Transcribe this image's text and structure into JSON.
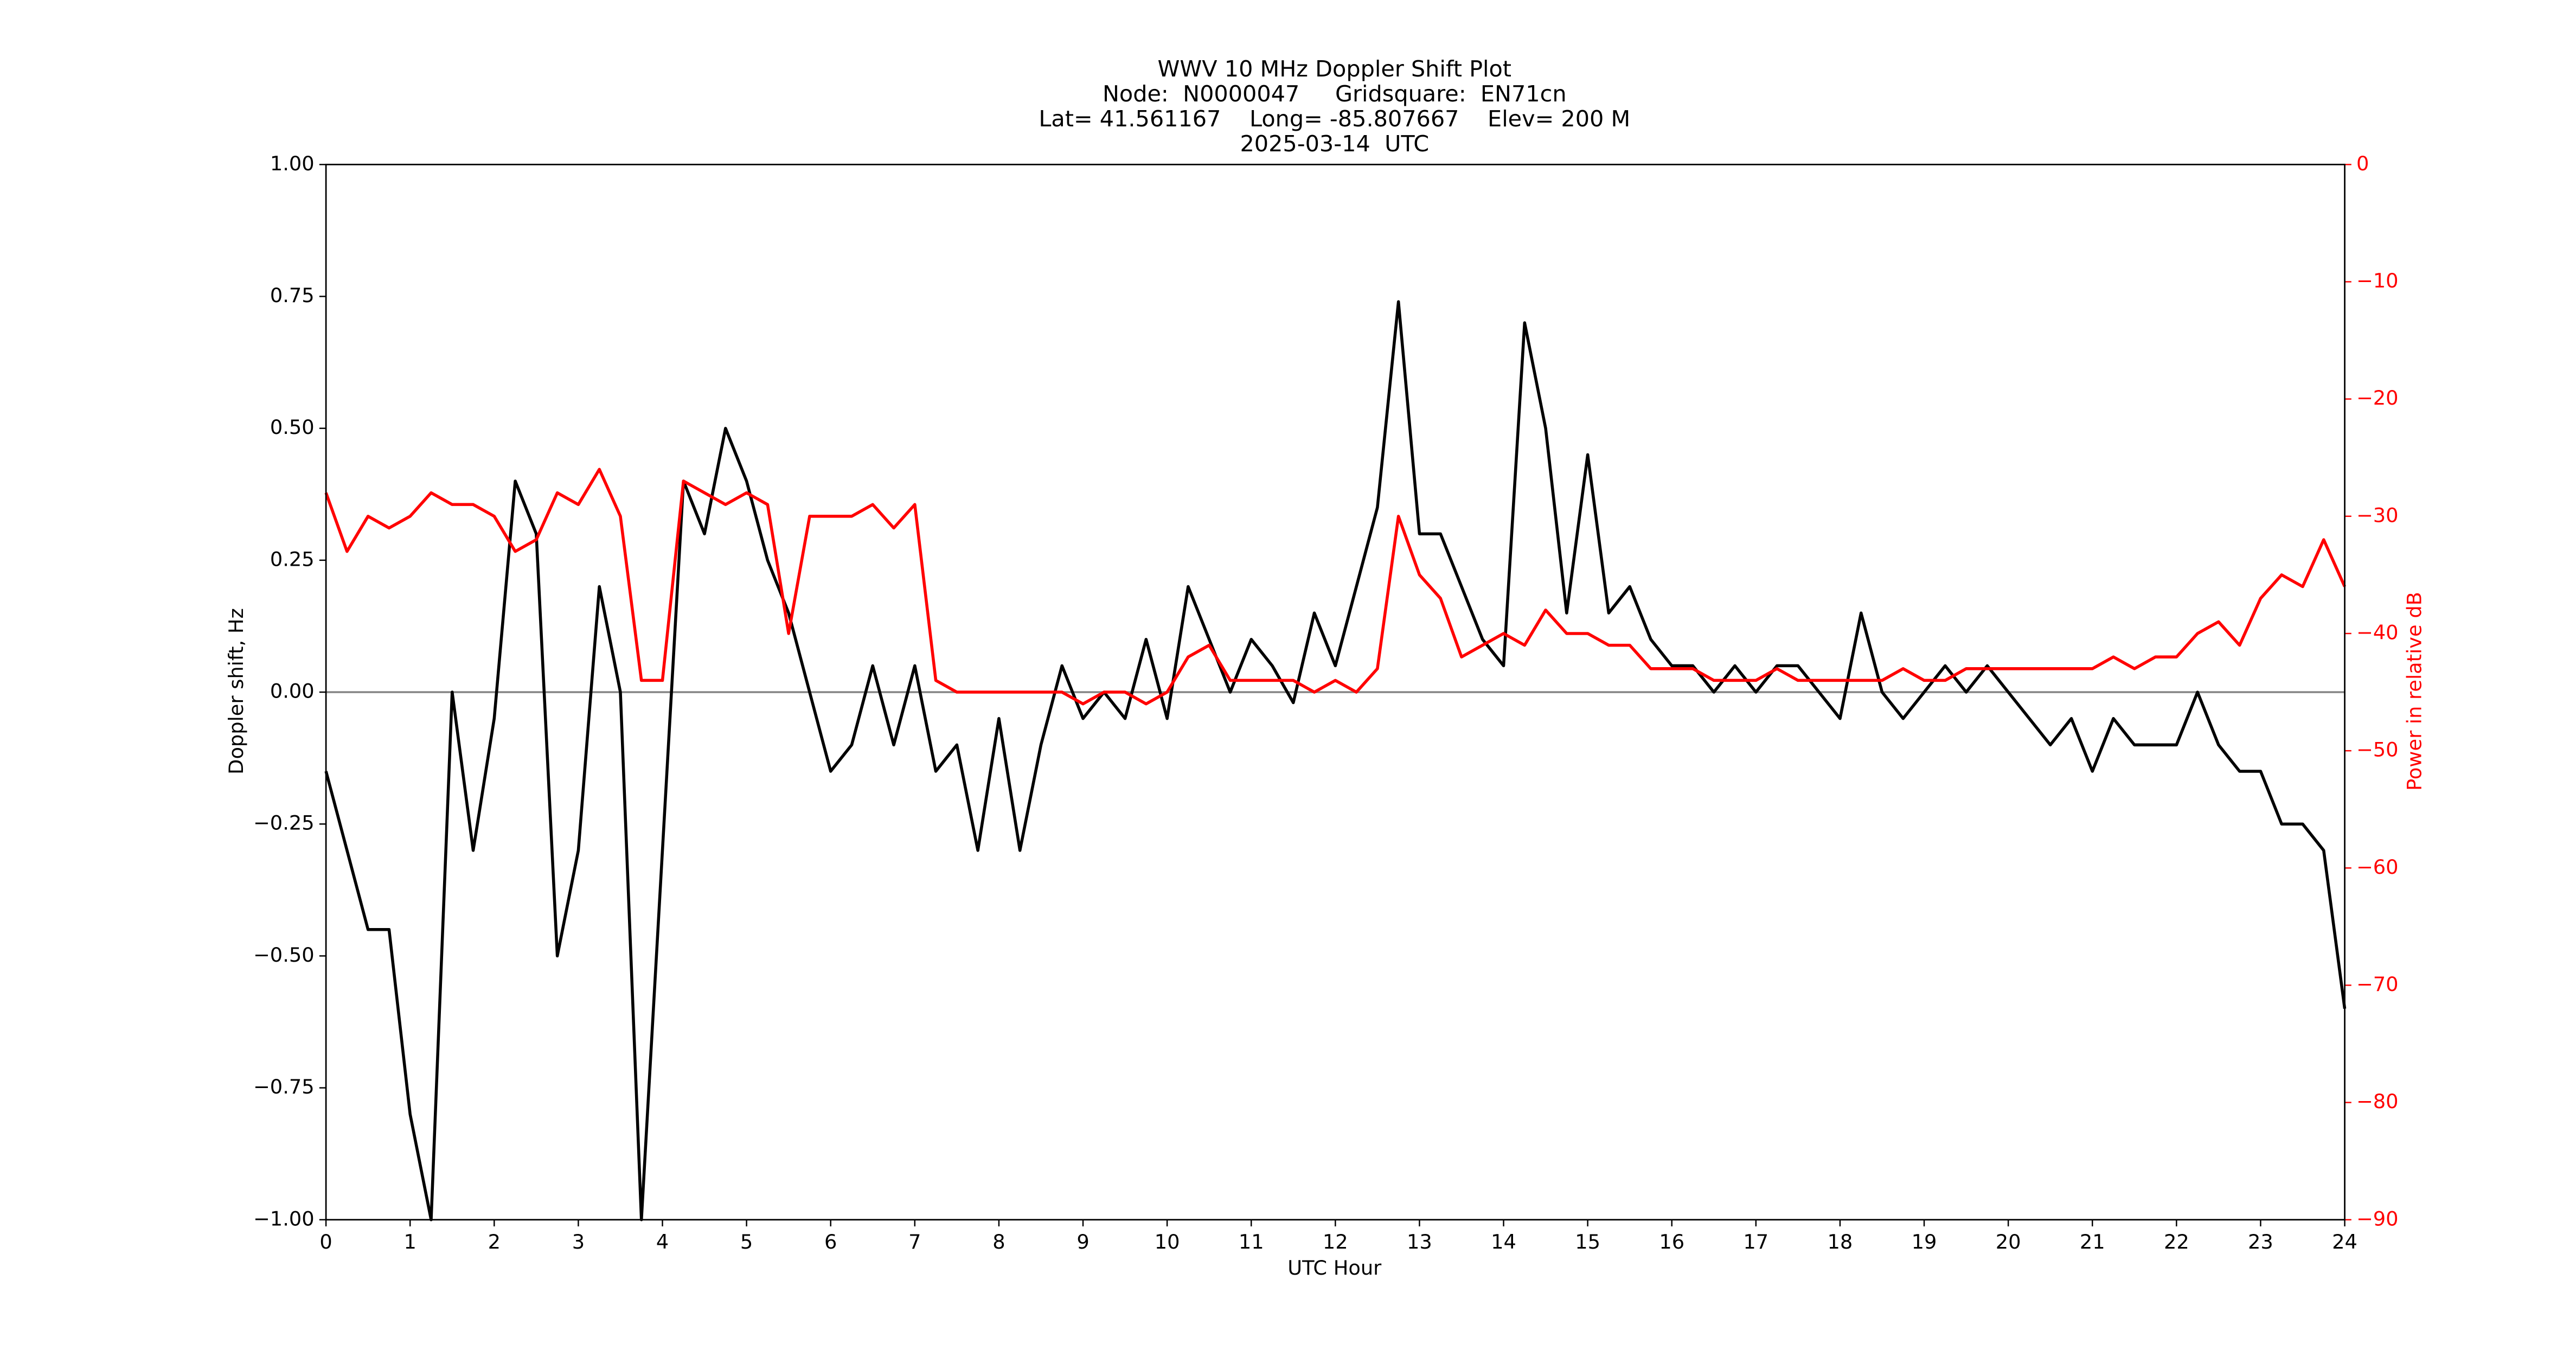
{
  "chart_data": {
    "type": "line",
    "title": [
      "WWV 10 MHz Doppler Shift Plot",
      "Node:  N0000047     Gridsquare:  EN71cn",
      "Lat= 41.561167    Long= -85.807667    Elev= 200 M",
      "2025-03-14  UTC"
    ],
    "x_label": "UTC Hour",
    "y_label": "Doppler shift, Hz",
    "y2_label": "Power in relative dB",
    "x": [
      0,
      0.25,
      0.5,
      0.75,
      1,
      1.25,
      1.5,
      1.75,
      2,
      2.25,
      2.5,
      2.75,
      3,
      3.25,
      3.5,
      3.75,
      4,
      4.25,
      4.5,
      4.75,
      5,
      5.25,
      5.5,
      5.75,
      6,
      6.25,
      6.5,
      6.75,
      7,
      7.25,
      7.5,
      7.75,
      8,
      8.25,
      8.5,
      8.75,
      9,
      9.25,
      9.5,
      9.75,
      10,
      10.25,
      10.5,
      10.75,
      11,
      11.25,
      11.5,
      11.75,
      12,
      12.25,
      12.5,
      12.75,
      13,
      13.25,
      13.5,
      13.75,
      14,
      14.25,
      14.5,
      14.75,
      15,
      15.25,
      15.5,
      15.75,
      16,
      16.25,
      16.5,
      16.75,
      17,
      17.25,
      17.5,
      17.75,
      18,
      18.25,
      18.5,
      18.75,
      19,
      19.25,
      19.5,
      19.75,
      20,
      20.25,
      20.5,
      20.75,
      21,
      21.25,
      21.5,
      21.75,
      22,
      22.25,
      22.5,
      22.75,
      23,
      23.25,
      23.5,
      23.75,
      24
    ],
    "series": [
      {
        "name": "Doppler shift",
        "color": "#000000",
        "values": [
          -0.15,
          -0.3,
          -0.45,
          -0.45,
          -0.8,
          -1.0,
          0.0,
          -0.3,
          -0.05,
          0.4,
          0.3,
          -0.5,
          -0.3,
          0.2,
          0.0,
          -1.0,
          -0.3,
          0.4,
          0.3,
          0.5,
          0.4,
          0.25,
          0.15,
          0.0,
          -0.15,
          -0.1,
          0.05,
          -0.1,
          0.05,
          -0.15,
          -0.1,
          -0.3,
          -0.05,
          -0.3,
          -0.1,
          0.05,
          -0.05,
          0.0,
          -0.05,
          0.1,
          -0.05,
          0.2,
          0.1,
          0.0,
          0.1,
          0.05,
          -0.02,
          0.15,
          0.05,
          0.2,
          0.35,
          0.74,
          0.3,
          0.3,
          0.2,
          0.1,
          0.05,
          0.7,
          0.5,
          0.15,
          0.45,
          0.15,
          0.2,
          0.1,
          0.05,
          0.05,
          0.0,
          0.05,
          0.0,
          0.05,
          0.05,
          0.0,
          -0.05,
          0.15,
          0.0,
          -0.05,
          0.0,
          0.05,
          0.0,
          0.05,
          0.0,
          -0.05,
          -0.1,
          -0.05,
          -0.15,
          -0.05,
          -0.1,
          -0.1,
          -0.1,
          0.0,
          -0.1,
          -0.15,
          -0.15,
          -0.25,
          -0.25,
          -0.3,
          -0.6
        ]
      },
      {
        "name": "Power",
        "color": "#ff0000",
        "axis": "y2",
        "values": [
          -28,
          -33,
          -30,
          -31,
          -30,
          -28,
          -29,
          -29,
          -30,
          -33,
          -32,
          -28,
          -29,
          -26,
          -30,
          -44,
          -44,
          -27,
          -28,
          -29,
          -28,
          -29,
          -40,
          -30,
          -30,
          -30,
          -29,
          -31,
          -29,
          -44,
          -45,
          -45,
          -45,
          -45,
          -45,
          -45,
          -46,
          -45,
          -45,
          -46,
          -45,
          -42,
          -41,
          -44,
          -44,
          -44,
          -44,
          -45,
          -44,
          -45,
          -43,
          -30,
          -35,
          -37,
          -42,
          -41,
          -40,
          -41,
          -38,
          -40,
          -40,
          -41,
          -41,
          -43,
          -43,
          -43,
          -44,
          -44,
          -44,
          -43,
          -44,
          -44,
          -44,
          -44,
          -44,
          -43,
          -44,
          -44,
          -43,
          -43,
          -43,
          -43,
          -43,
          -43,
          -43,
          -42,
          -43,
          -42,
          -42,
          -40,
          -39,
          -41,
          -37,
          -35,
          -36,
          -32,
          -36
        ]
      }
    ],
    "xlim": [
      0,
      24
    ],
    "xticks": [
      0,
      1,
      2,
      3,
      4,
      5,
      6,
      7,
      8,
      9,
      10,
      11,
      12,
      13,
      14,
      15,
      16,
      17,
      18,
      19,
      20,
      21,
      22,
      23,
      24
    ],
    "ylim": [
      -1,
      1
    ],
    "yticks": [
      {
        "value": -1,
        "label": "−1.00"
      },
      {
        "value": -0.75,
        "label": "−0.75"
      },
      {
        "value": -0.5,
        "label": "−0.50"
      },
      {
        "value": -0.25,
        "label": "−0.25"
      },
      {
        "value": 0,
        "label": "0.00"
      },
      {
        "value": 0.25,
        "label": "0.25"
      },
      {
        "value": 0.5,
        "label": "0.50"
      },
      {
        "value": 0.75,
        "label": "0.75"
      },
      {
        "value": 1,
        "label": "1.00"
      }
    ],
    "y2lim": [
      -90,
      0
    ],
    "y2ticks": [
      {
        "value": -90,
        "label": "−90"
      },
      {
        "value": -80,
        "label": "−80"
      },
      {
        "value": -70,
        "label": "−70"
      },
      {
        "value": -60,
        "label": "−60"
      },
      {
        "value": -50,
        "label": "−50"
      },
      {
        "value": -40,
        "label": "−40"
      },
      {
        "value": -30,
        "label": "−30"
      },
      {
        "value": -20,
        "label": "−20"
      },
      {
        "value": -10,
        "label": "−10"
      },
      0
    ],
    "y2_color": "#ff0000",
    "reference_line": 0,
    "reference_line_color": "#888888"
  }
}
